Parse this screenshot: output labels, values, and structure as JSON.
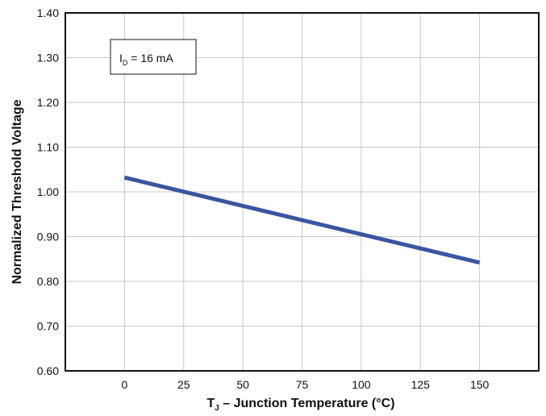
{
  "chart_data": {
    "type": "line",
    "xlabel": {
      "main": "T",
      "sub": "J",
      "rest": " – Junction Temperature (°C)"
    },
    "ylabel": "Normalized Threshold Voltage",
    "xlim": [
      -25,
      175
    ],
    "ylim": [
      0.6,
      1.4
    ],
    "xticks": [
      0,
      25,
      50,
      75,
      100,
      125,
      150
    ],
    "xtick_labels": [
      "0",
      "25",
      "50",
      "75",
      "100",
      "125",
      "150"
    ],
    "yticks": [
      0.6,
      0.7,
      0.8,
      0.9,
      1.0,
      1.1,
      1.2,
      1.3,
      1.4
    ],
    "ytick_labels": [
      "0.60",
      "0.70",
      "0.80",
      "0.90",
      "1.00",
      "1.10",
      "1.20",
      "1.30",
      "1.40"
    ],
    "grid": true,
    "annotation": {
      "main": "I",
      "sub": "D",
      "rest": " = 16 mA"
    },
    "series": [
      {
        "color": "#3a55a3",
        "x": [
          0,
          150
        ],
        "y": [
          1.032,
          0.842
        ]
      }
    ]
  }
}
